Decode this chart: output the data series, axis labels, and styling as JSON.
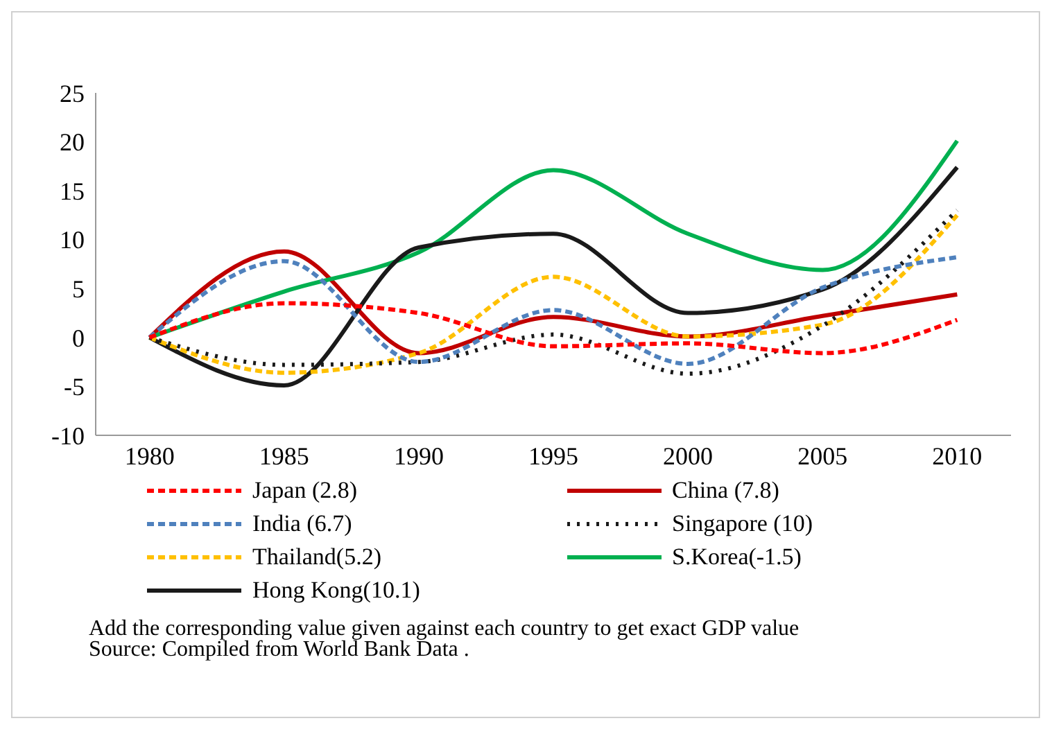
{
  "chart_data": {
    "type": "line",
    "x": [
      1980,
      1985,
      1990,
      1995,
      2000,
      2005,
      2010
    ],
    "xlim": [
      1978,
      2012
    ],
    "xticks": [
      1980,
      1985,
      1990,
      1995,
      2000,
      2005,
      2010
    ],
    "ylim": [
      -10,
      25
    ],
    "yticks": [
      -10,
      -5,
      0,
      5,
      10,
      15,
      20,
      25
    ],
    "grid": false,
    "legend": "bottom",
    "marker": "none",
    "series": [
      {
        "name": "Japan (2.8)",
        "color": "#ff0000",
        "line_style": "dashed",
        "values": [
          0,
          3.5,
          2.5,
          -0.9,
          -0.6,
          -1.6,
          1.8
        ]
      },
      {
        "name": "China (7.8)",
        "color": "#c00000",
        "line_style": "solid",
        "values": [
          0,
          8.8,
          -1.6,
          2.1,
          0.1,
          2.2,
          4.4
        ]
      },
      {
        "name": "India (6.7)",
        "color": "#4f81bd",
        "line_style": "dashed",
        "values": [
          0,
          7.8,
          -2.5,
          2.8,
          -2.7,
          5.1,
          8.2
        ]
      },
      {
        "name": "Singapore (10)",
        "color": "#1a1a1a",
        "line_style": "dotted",
        "values": [
          0,
          -2.8,
          -2.5,
          0.3,
          -3.7,
          1.2,
          13.0
        ]
      },
      {
        "name": "Thailand(5.2)",
        "color": "#ffc000",
        "line_style": "dashed",
        "values": [
          0,
          -3.6,
          -1.6,
          6.2,
          0.1,
          1.3,
          12.5
        ]
      },
      {
        "name": "S.Korea(-1.5)",
        "color": "#00b050",
        "line_style": "solid",
        "values": [
          0,
          4.7,
          8.7,
          17.1,
          10.6,
          6.9,
          20.1
        ]
      },
      {
        "name": "Hong Kong(10.1)",
        "color": "#1a1a1a",
        "line_style": "solid",
        "values": [
          0,
          -4.9,
          9.2,
          10.6,
          2.5,
          4.9,
          17.4
        ]
      }
    ],
    "annotations": [
      "Add the corresponding value given against each country to get exact GDP value",
      "Source: Compiled from World Bank Data ."
    ]
  }
}
